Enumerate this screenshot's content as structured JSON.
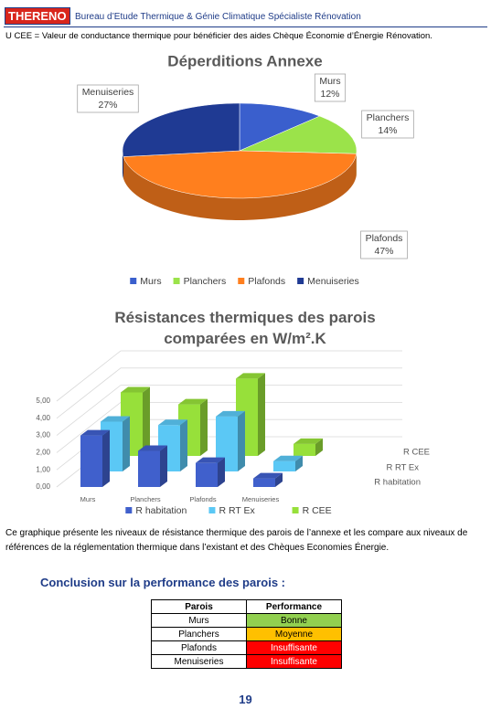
{
  "header": {
    "logo": "THERENO",
    "tagline": "Bureau d’Etude Thermique & Génie Climatique Spécialiste Rénovation"
  },
  "note": "U CEE = Valeur de conductance thermique pour bénéficier des aides Chèque Économie d’Énergie Rénovation.",
  "chart_data": [
    {
      "type": "pie",
      "title": "Déperditions Annexe",
      "categories": [
        "Murs",
        "Planchers",
        "Plafonds",
        "Menuiseries"
      ],
      "values": [
        12,
        14,
        47,
        27
      ],
      "value_labels": [
        "12%",
        "14%",
        "47%",
        "27%"
      ],
      "colors": [
        "#3a5fcd",
        "#9be34a",
        "#ff7f1e",
        "#1f3a93"
      ],
      "legend": "bottom"
    },
    {
      "type": "bar3d",
      "title": "Résistances thermiques des parois comparées en W/m².K",
      "categories": [
        "Murs",
        "Planchers",
        "Plafonds",
        "Menuiseries"
      ],
      "series": [
        {
          "name": "R habitation",
          "color": "#4060cc",
          "values": [
            3.0,
            2.1,
            1.4,
            0.5
          ]
        },
        {
          "name": "R RT Ex",
          "color": "#5bc8f5",
          "values": [
            2.9,
            2.7,
            3.2,
            0.6
          ]
        },
        {
          "name": "R CEE",
          "color": "#97e03a",
          "values": [
            3.7,
            3.0,
            4.5,
            0.7
          ]
        }
      ],
      "ylim": [
        0,
        5
      ],
      "yticks": [
        {
          "value": 0,
          "label": "0,00"
        },
        {
          "value": 1,
          "label": "1,00"
        },
        {
          "value": 2,
          "label": "2,00"
        },
        {
          "value": 3,
          "label": "3,00"
        },
        {
          "value": 4,
          "label": "4,00"
        },
        {
          "value": 5,
          "label": "5,00"
        }
      ],
      "grid": true,
      "legend": "bottom"
    }
  ],
  "description": "Ce graphique présente les niveaux de résistance thermique des parois de l’annexe et les compare aux niveaux de références de la réglementation thermique dans l’existant et des Chèques Economies Énergie.",
  "conclusion": {
    "title": "Conclusion sur la performance des parois :",
    "table": {
      "columns": [
        "Parois",
        "Performance"
      ],
      "rows": [
        [
          "Murs",
          "Bonne"
        ],
        [
          "Planchers",
          "Moyenne"
        ],
        [
          "Plafonds",
          "Insuffisante"
        ],
        [
          "Menuiseries",
          "Insuffisante"
        ]
      ]
    }
  },
  "page_number": "19"
}
